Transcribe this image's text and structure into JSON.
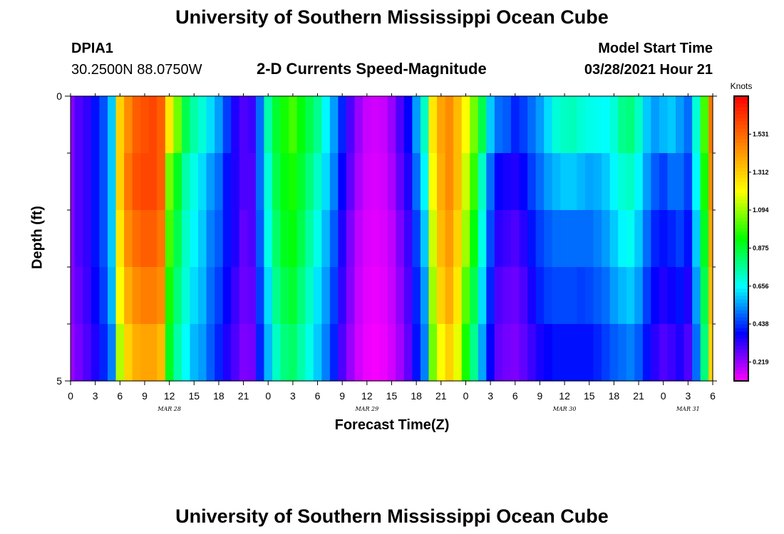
{
  "page": {
    "title_top": "University of Southern Mississippi Ocean Cube",
    "title_bottom": "University of Southern Mississippi Ocean Cube",
    "station_id": "DPIA1",
    "station_coords": "30.2500N  88.0750W",
    "chart_title": "2-D Currents Speed-Magnitude",
    "model_start_label": "Model Start Time",
    "model_start_value": "03/28/2021 Hour 21"
  },
  "chart_data": {
    "type": "heatmap",
    "title": "2-D Currents Speed-Magnitude",
    "xlabel": "Forecast Time(Z)",
    "ylabel": "Depth (ft)",
    "x_tick_labels": [
      "0",
      "3",
      "6",
      "9",
      "12",
      "15",
      "18",
      "21",
      "0",
      "3",
      "6",
      "9",
      "12",
      "15",
      "18",
      "21",
      "0",
      "3",
      "6",
      "9",
      "12",
      "15",
      "18",
      "21",
      "0",
      "3",
      "6"
    ],
    "month_labels": [
      "MAR 28",
      "MAR 29",
      "MAR 30",
      "MAR 31"
    ],
    "y_tick_labels": [
      "0",
      "5"
    ],
    "ylim": [
      0,
      5
    ],
    "y_reversed": true,
    "x_range_hours": [
      0,
      78
    ],
    "colorbar": {
      "label": "Knots",
      "ticks": [
        "0.219",
        "0.438",
        "0.656",
        "0.875",
        "1.094",
        "1.312",
        "1.531"
      ],
      "range": [
        0.11,
        1.75
      ],
      "colors": [
        "#ff00ff",
        "#8000ff",
        "#0000ff",
        "#0080ff",
        "#00ffff",
        "#00ff80",
        "#00ff00",
        "#80ff00",
        "#ffff00",
        "#ffc000",
        "#ff8000",
        "#ff4000",
        "#ff0000"
      ]
    },
    "depth_levels_ft": [
      0.5,
      1.5,
      2.5,
      3.5,
      4.5
    ],
    "x_hours": [
      0,
      1,
      2,
      3,
      4,
      5,
      6,
      7,
      8,
      9,
      10,
      11,
      12,
      13,
      14,
      15,
      16,
      17,
      18,
      19,
      20,
      21,
      22,
      23,
      24,
      25,
      26,
      27,
      28,
      29,
      30,
      31,
      32,
      33,
      34,
      35,
      36,
      37,
      38,
      39,
      40,
      41,
      42,
      43,
      44,
      45,
      46,
      47,
      48,
      49,
      50,
      51,
      52,
      53,
      54,
      55,
      56,
      57,
      58,
      59,
      60,
      61,
      62,
      63,
      64,
      65,
      66,
      67,
      68,
      69,
      70,
      71,
      72,
      73,
      74,
      75,
      76,
      77,
      78
    ],
    "values": [
      [
        0.24,
        0.3,
        0.33,
        0.4,
        0.47,
        0.6,
        1.3,
        1.45,
        1.55,
        1.58,
        1.6,
        1.55,
        1.25,
        1.05,
        0.85,
        0.75,
        0.7,
        0.62,
        0.55,
        0.45,
        0.35,
        0.3,
        0.32,
        0.5,
        0.75,
        0.88,
        0.95,
        1.0,
        0.92,
        0.85,
        0.78,
        0.65,
        0.55,
        0.42,
        0.3,
        0.22,
        0.17,
        0.16,
        0.17,
        0.22,
        0.3,
        0.38,
        0.55,
        0.72,
        1.25,
        1.4,
        1.45,
        1.35,
        1.2,
        1.05,
        0.85,
        0.6,
        0.5,
        0.48,
        0.42,
        0.45,
        0.5,
        0.55,
        0.62,
        0.7,
        0.72,
        0.73,
        0.7,
        0.68,
        0.67,
        0.66,
        0.7,
        0.78,
        0.8,
        0.72,
        0.6,
        0.55,
        0.58,
        0.6,
        0.55,
        0.5,
        0.7,
        1.0,
        1.5
      ],
      [
        0.24,
        0.3,
        0.33,
        0.4,
        0.47,
        0.6,
        1.3,
        1.5,
        1.58,
        1.6,
        1.6,
        1.55,
        1.05,
        0.9,
        0.75,
        0.68,
        0.62,
        0.55,
        0.5,
        0.4,
        0.35,
        0.3,
        0.3,
        0.5,
        0.7,
        0.85,
        0.92,
        0.95,
        0.88,
        0.8,
        0.72,
        0.62,
        0.52,
        0.38,
        0.28,
        0.2,
        0.16,
        0.15,
        0.16,
        0.2,
        0.28,
        0.35,
        0.5,
        0.65,
        1.2,
        1.38,
        1.45,
        1.35,
        1.15,
        0.98,
        0.72,
        0.5,
        0.38,
        0.36,
        0.35,
        0.38,
        0.45,
        0.5,
        0.55,
        0.58,
        0.6,
        0.6,
        0.58,
        0.56,
        0.57,
        0.6,
        0.65,
        0.7,
        0.72,
        0.65,
        0.55,
        0.48,
        0.45,
        0.5,
        0.5,
        0.45,
        0.65,
        0.95,
        1.45
      ],
      [
        0.24,
        0.3,
        0.33,
        0.4,
        0.47,
        0.6,
        1.25,
        1.45,
        1.52,
        1.55,
        1.55,
        1.5,
        1.0,
        0.85,
        0.72,
        0.65,
        0.6,
        0.52,
        0.48,
        0.4,
        0.35,
        0.28,
        0.3,
        0.48,
        0.68,
        0.82,
        0.9,
        0.92,
        0.85,
        0.76,
        0.68,
        0.58,
        0.48,
        0.35,
        0.25,
        0.18,
        0.15,
        0.14,
        0.15,
        0.18,
        0.25,
        0.32,
        0.45,
        0.6,
        1.15,
        1.35,
        1.42,
        1.3,
        1.1,
        0.92,
        0.68,
        0.46,
        0.34,
        0.32,
        0.3,
        0.34,
        0.4,
        0.45,
        0.48,
        0.5,
        0.5,
        0.5,
        0.5,
        0.5,
        0.52,
        0.55,
        0.6,
        0.65,
        0.67,
        0.6,
        0.5,
        0.42,
        0.4,
        0.42,
        0.45,
        0.4,
        0.6,
        0.9,
        1.4
      ],
      [
        0.24,
        0.28,
        0.32,
        0.38,
        0.45,
        0.58,
        1.2,
        1.38,
        1.45,
        1.48,
        1.48,
        1.45,
        0.95,
        0.8,
        0.7,
        0.62,
        0.58,
        0.5,
        0.45,
        0.38,
        0.32,
        0.27,
        0.28,
        0.45,
        0.62,
        0.78,
        0.85,
        0.88,
        0.8,
        0.72,
        0.63,
        0.55,
        0.45,
        0.33,
        0.24,
        0.17,
        0.14,
        0.13,
        0.14,
        0.17,
        0.23,
        0.3,
        0.42,
        0.55,
        1.1,
        1.3,
        1.38,
        1.25,
        1.02,
        0.85,
        0.62,
        0.42,
        0.3,
        0.28,
        0.27,
        0.3,
        0.36,
        0.42,
        0.45,
        0.46,
        0.46,
        0.46,
        0.45,
        0.46,
        0.48,
        0.5,
        0.55,
        0.58,
        0.6,
        0.55,
        0.45,
        0.38,
        0.35,
        0.37,
        0.4,
        0.35,
        0.55,
        0.85,
        1.35
      ],
      [
        0.22,
        0.26,
        0.3,
        0.35,
        0.42,
        0.52,
        1.12,
        1.3,
        1.38,
        1.4,
        1.4,
        1.35,
        0.9,
        0.75,
        0.66,
        0.58,
        0.55,
        0.48,
        0.42,
        0.35,
        0.3,
        0.25,
        0.26,
        0.42,
        0.58,
        0.72,
        0.8,
        0.82,
        0.75,
        0.68,
        0.6,
        0.52,
        0.42,
        0.3,
        0.22,
        0.16,
        0.13,
        0.12,
        0.13,
        0.16,
        0.21,
        0.28,
        0.4,
        0.52,
        1.05,
        1.2,
        1.3,
        1.18,
        0.95,
        0.78,
        0.56,
        0.38,
        0.28,
        0.26,
        0.25,
        0.28,
        0.32,
        0.36,
        0.38,
        0.4,
        0.4,
        0.4,
        0.4,
        0.4,
        0.42,
        0.45,
        0.48,
        0.5,
        0.52,
        0.48,
        0.4,
        0.34,
        0.3,
        0.32,
        0.35,
        0.3,
        0.5,
        0.8,
        1.3
      ]
    ]
  }
}
